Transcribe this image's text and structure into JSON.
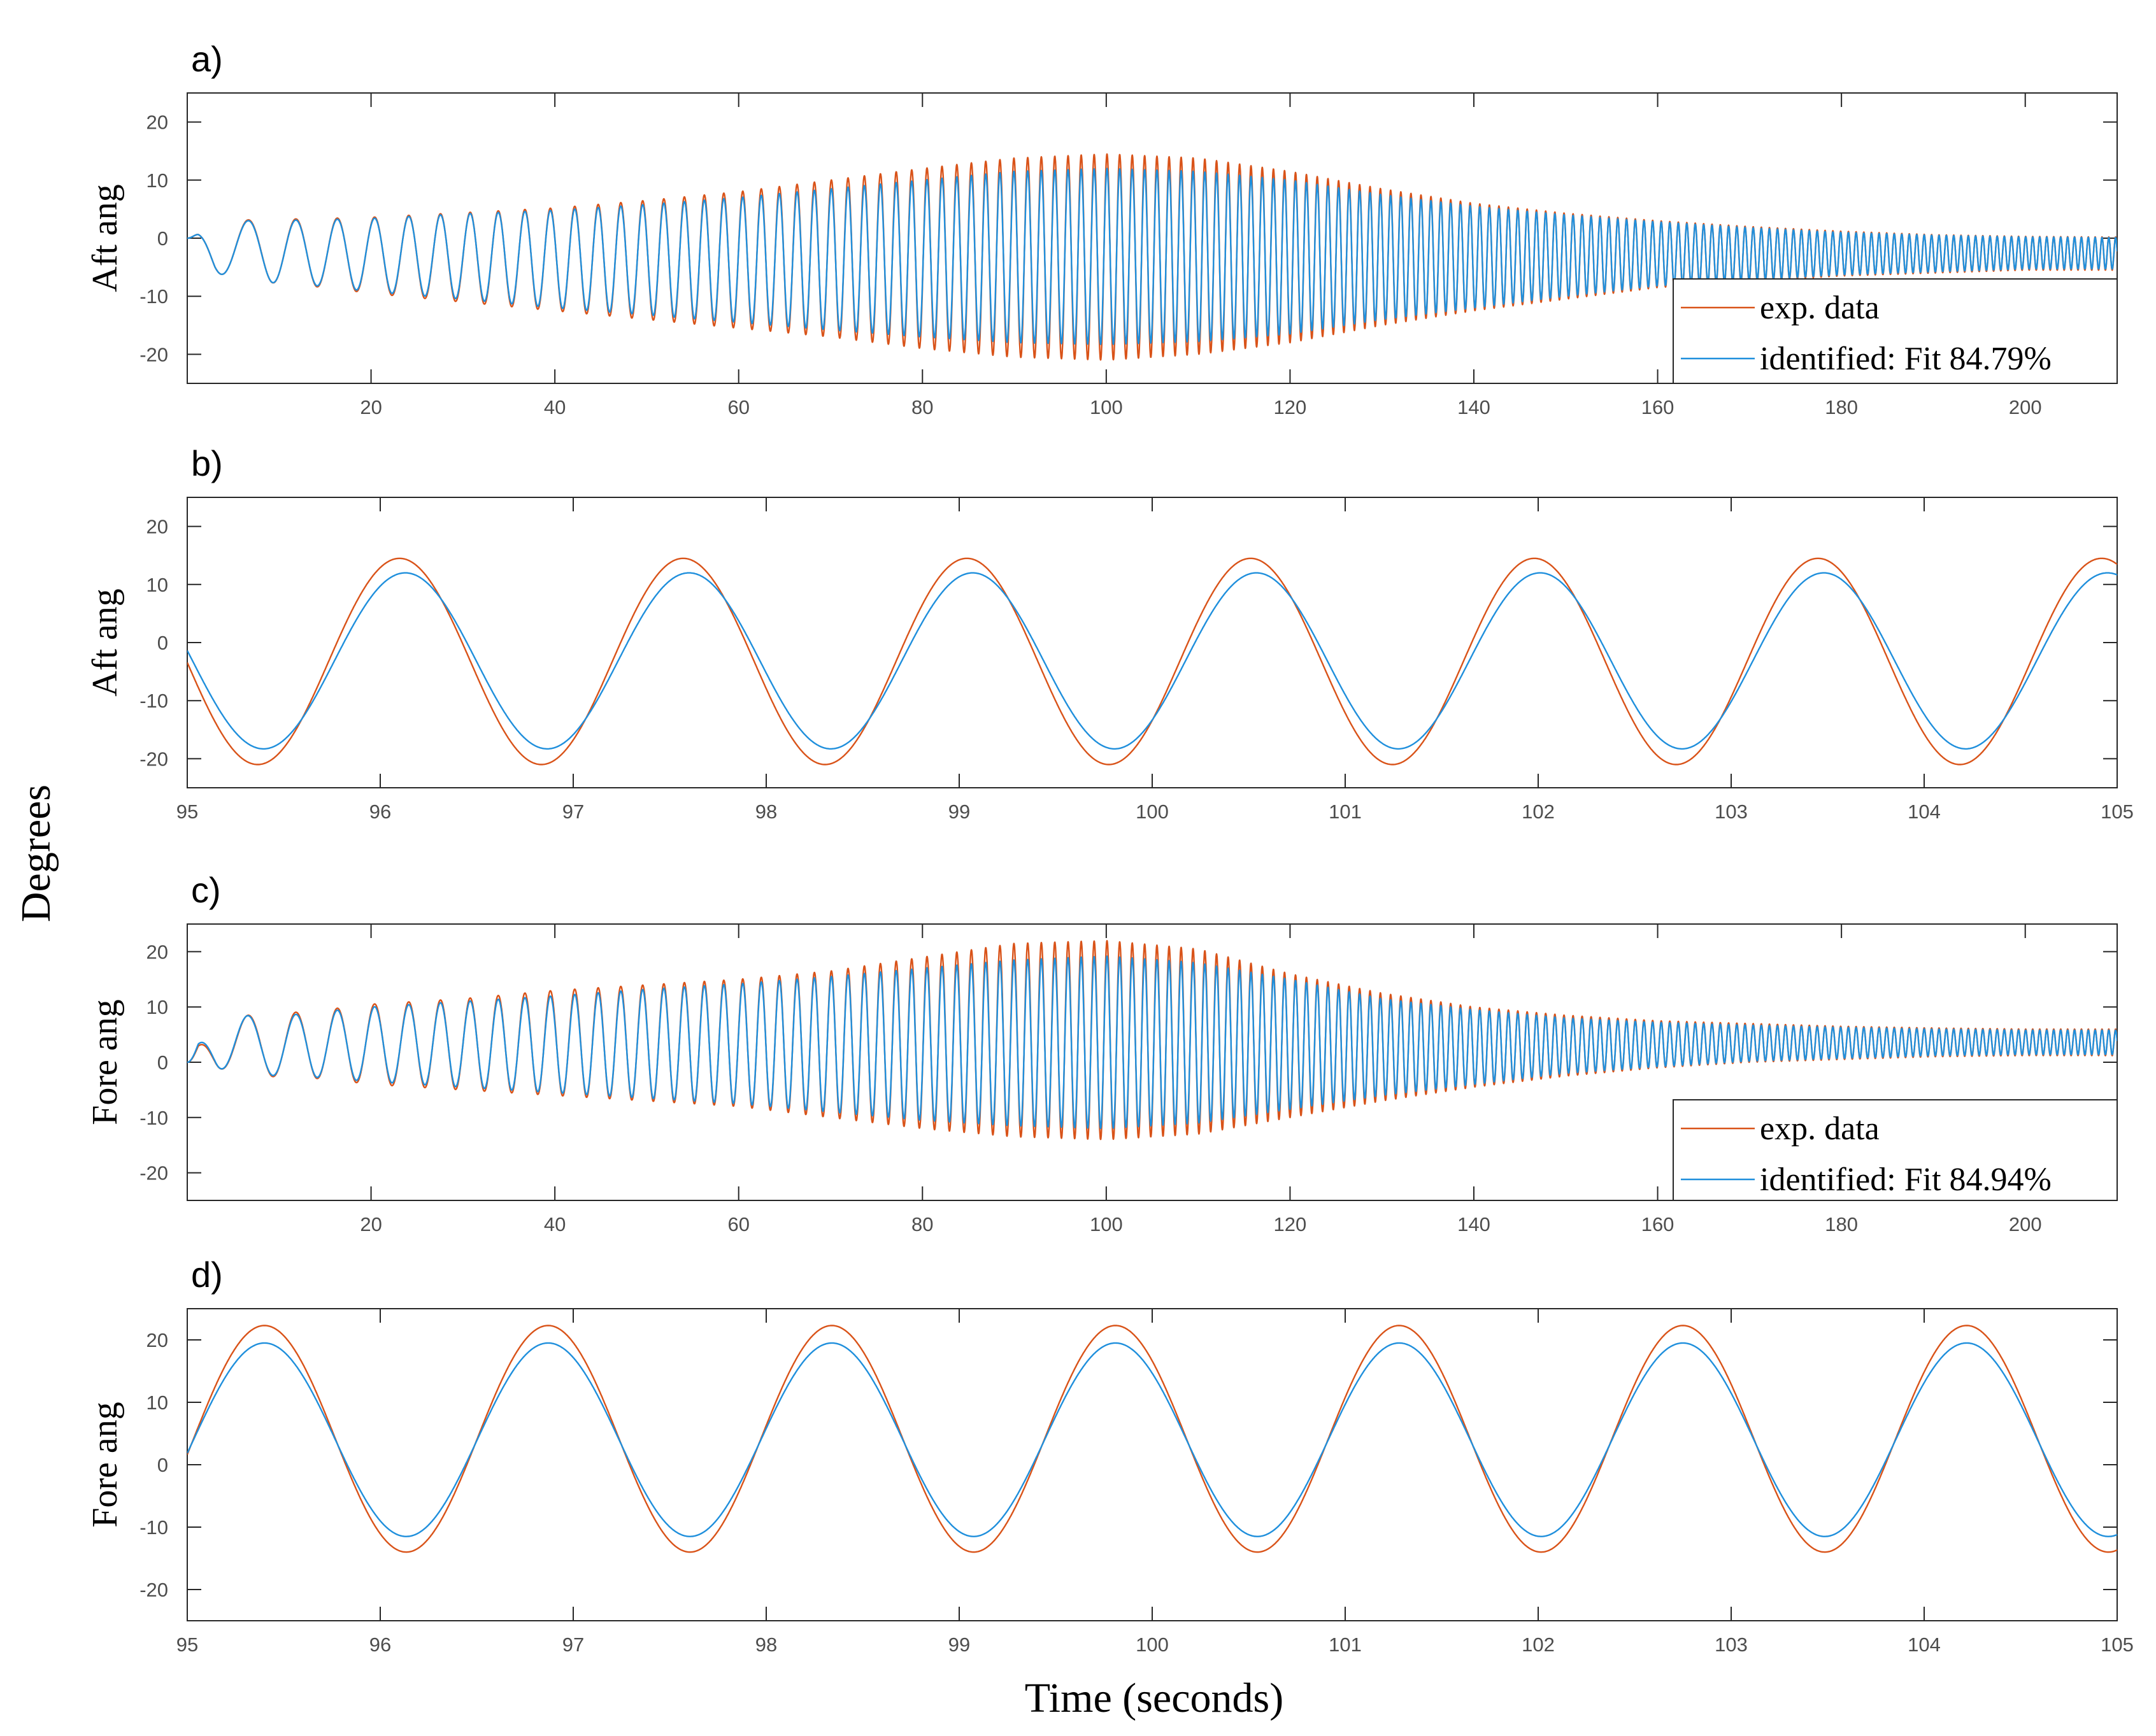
{
  "figure": {
    "shared_ylabel": "Degrees",
    "shared_xlabel": "Time (seconds)"
  },
  "colors": {
    "exp": "#D95319",
    "ident": "#0072BD",
    "ident_light": "#1f8fdc",
    "axis": "#262626"
  },
  "chart_data": [
    {
      "id": "a",
      "panel_label": "a)",
      "type": "line",
      "ylabel": "Aft ang",
      "xlim": [
        0,
        210
      ],
      "ylim": [
        -25,
        25
      ],
      "xticks": [
        20,
        40,
        60,
        80,
        100,
        120,
        140,
        160,
        180,
        200
      ],
      "yticks": [
        -20,
        -10,
        0,
        10,
        20
      ],
      "legend": {
        "position": "bottom-right",
        "entries": [
          "exp. data",
          "identified: Fit 84.79%"
        ]
      },
      "series": [
        {
          "name": "exp. data",
          "color": "#D95319",
          "envelope": {
            "t": [
              0,
              3,
              8,
              15,
              20,
              30,
              40,
              50,
              60,
              70,
              80,
              90,
              100,
              110,
              120,
              130,
              140,
              150,
              160,
              170,
              180,
              190,
              200,
              210
            ],
            "max": [
              0,
              3,
              3.2,
              3.4,
              3.6,
              4.4,
              5.2,
              6.5,
              8,
              10,
              12,
              13.8,
              14.5,
              13.8,
              11.5,
              8.5,
              6,
              4.3,
              3,
              2,
              1.2,
              0.6,
              0.3,
              0.2
            ],
            "min": [
              -2,
              -6,
              -7.5,
              -8.5,
              -9.5,
              -11,
              -12.5,
              -14,
              -15.5,
              -17,
              -19,
              -20.5,
              -21,
              -20,
              -18,
              -15,
              -12.5,
              -10.5,
              -8.5,
              -7.5,
              -6.5,
              -6,
              -5.5,
              -5.5
            ]
          }
        },
        {
          "name": "identified: Fit 84.79%",
          "color": "#0072BD",
          "envelope": {
            "t": [
              0,
              3,
              8,
              15,
              20,
              30,
              40,
              50,
              60,
              70,
              80,
              90,
              100,
              110,
              120,
              130,
              140,
              150,
              160,
              170,
              180,
              190,
              200,
              210
            ],
            "max": [
              0,
              3,
              3,
              3.2,
              3.4,
              4.2,
              4.8,
              5.8,
              7,
              8.5,
              10,
              11.5,
              12,
              11.5,
              10,
              7.5,
              5.5,
              4,
              2.8,
              1.8,
              1,
              0.5,
              0.2,
              0.1
            ],
            "min": [
              -2,
              -6,
              -7.5,
              -8.3,
              -9.2,
              -10.5,
              -12,
              -13.2,
              -14.5,
              -15.8,
              -17,
              -18,
              -18.3,
              -17.8,
              -16.5,
              -14,
              -12,
              -10,
              -8.2,
              -7.2,
              -6.3,
              -5.8,
              -5.3,
              -5.3
            ]
          }
        }
      ]
    },
    {
      "id": "b",
      "panel_label": "b)",
      "type": "line",
      "ylabel": "Aft ang",
      "xlim": [
        95,
        105
      ],
      "ylim": [
        -25,
        25
      ],
      "xticks": [
        95,
        96,
        97,
        98,
        99,
        100,
        101,
        102,
        103,
        104,
        105
      ],
      "yticks": [
        -20,
        -10,
        0,
        10,
        20
      ],
      "series": [
        {
          "name": "exp. data",
          "color": "#D95319",
          "period": 1.47,
          "peak_time": 96.1,
          "max": 14.5,
          "min": -21
        },
        {
          "name": "identified: Fit 84.79%",
          "color": "#0072BD",
          "period": 1.47,
          "peak_time": 96.13,
          "max": 12,
          "min": -18.3
        }
      ]
    },
    {
      "id": "c",
      "panel_label": "c)",
      "type": "line",
      "ylabel": "Fore ang",
      "xlim": [
        0,
        210
      ],
      "ylim": [
        -25,
        25
      ],
      "xticks": [
        20,
        40,
        60,
        80,
        100,
        120,
        140,
        160,
        180,
        200
      ],
      "yticks": [
        -20,
        -10,
        0,
        10,
        20
      ],
      "legend": {
        "position": "bottom-right",
        "entries": [
          "exp. data",
          "identified: Fit 84.94%"
        ]
      },
      "series": [
        {
          "name": "exp. data",
          "color": "#D95319",
          "envelope": {
            "t": [
              0,
              3,
              8,
              15,
              20,
              30,
              40,
              50,
              60,
              70,
              80,
              90,
              100,
              110,
              120,
              130,
              140,
              150,
              160,
              170,
              180,
              190,
              200,
              210
            ],
            "max": [
              0,
              8.5,
              8.5,
              9.5,
              10.5,
              11.5,
              13,
              14,
              15,
              16.5,
              19,
              21.5,
              22,
              20.5,
              16,
              12.5,
              10,
              8.5,
              7.5,
              7,
              6.5,
              6.2,
              6,
              6
            ],
            "min": [
              0,
              -1,
              -2.5,
              -3,
              -4,
              -5,
              -6,
              -7,
              -8,
              -10,
              -12,
              -13.5,
              -14,
              -13,
              -10,
              -7,
              -4.5,
              -2.5,
              -1,
              0,
              0.5,
              1,
              1.2,
              1.2
            ]
          }
        },
        {
          "name": "identified: Fit 84.94%",
          "color": "#0072BD",
          "envelope": {
            "t": [
              0,
              3,
              8,
              15,
              20,
              30,
              40,
              50,
              60,
              70,
              80,
              90,
              100,
              110,
              120,
              130,
              140,
              150,
              160,
              170,
              180,
              190,
              200,
              210
            ],
            "max": [
              0,
              9.5,
              8,
              9.2,
              10,
              11,
              12,
              13.2,
              14.2,
              15.5,
              17,
              18.5,
              19.2,
              18,
              15,
              11.5,
              9.5,
              8,
              7.2,
              6.7,
              6.3,
              6,
              5.8,
              5.8
            ],
            "min": [
              0,
              -1,
              -2.3,
              -2.8,
              -3.5,
              -4.5,
              -5.5,
              -6.5,
              -7.5,
              -9,
              -10.5,
              -11.5,
              -12,
              -11,
              -8.5,
              -6,
              -4,
              -2,
              -0.8,
              0.2,
              0.7,
              1.2,
              1.4,
              1.4
            ]
          }
        }
      ]
    },
    {
      "id": "d",
      "panel_label": "d)",
      "type": "line",
      "ylabel": "Fore ang",
      "xlim": [
        95,
        105
      ],
      "ylim": [
        -25,
        25
      ],
      "xticks": [
        95,
        96,
        97,
        98,
        99,
        100,
        101,
        102,
        103,
        104,
        105
      ],
      "yticks": [
        -20,
        -10,
        0,
        10,
        20
      ],
      "series": [
        {
          "name": "exp. data",
          "color": "#D95319",
          "period": 1.47,
          "peak_time": 95.4,
          "max": 22.3,
          "min": -14
        },
        {
          "name": "identified: Fit 84.94%",
          "color": "#0072BD",
          "period": 1.47,
          "peak_time": 95.4,
          "max": 19.5,
          "min": -11.5
        }
      ]
    }
  ]
}
